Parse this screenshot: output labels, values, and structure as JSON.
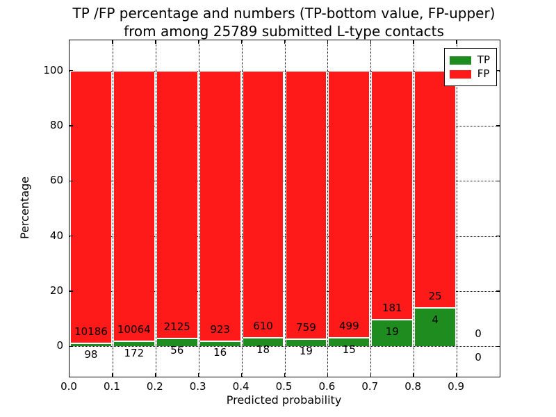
{
  "figure": {
    "title_line1": "TP /FP percentage and numbers (TP-bottom value, FP-upper)",
    "title_line2": "from among 25789 submitted L-type contacts"
  },
  "chart_data": {
    "type": "bar",
    "stacked": true,
    "title": "TP /FP percentage and numbers (TP-bottom value, FP-upper) from among 25789 submitted L-type contacts",
    "xlabel": "Predicted probability",
    "ylabel": "Percentage",
    "total_submitted": 25789,
    "bins": [
      "0.0",
      "0.1",
      "0.2",
      "0.3",
      "0.4",
      "0.5",
      "0.6",
      "0.7",
      "0.8",
      "0.9"
    ],
    "bin_width": 0.1,
    "series": [
      {
        "name": "TP",
        "color": "#1e8c1e",
        "counts": [
          98,
          172,
          56,
          16,
          18,
          19,
          15,
          19,
          4,
          0
        ],
        "percent": [
          0.95,
          1.68,
          2.57,
          1.7,
          2.87,
          2.44,
          2.92,
          9.5,
          13.79,
          0
        ]
      },
      {
        "name": "FP",
        "color": "#ff1a1a",
        "counts": [
          10186,
          10064,
          2125,
          923,
          610,
          759,
          499,
          181,
          25,
          0
        ],
        "percent": [
          99.05,
          98.32,
          97.43,
          98.3,
          97.13,
          97.56,
          97.08,
          90.5,
          86.21,
          0
        ]
      }
    ],
    "xticks": [
      "0.0",
      "0.1",
      "0.2",
      "0.3",
      "0.4",
      "0.5",
      "0.6",
      "0.7",
      "0.8",
      "0.9"
    ],
    "yticks": [
      0,
      20,
      40,
      60,
      80,
      100
    ],
    "xlim": [
      0.0,
      1.0
    ],
    "ylim": [
      -11,
      111
    ],
    "grid": true,
    "grid_style": "dotted",
    "legend": {
      "position": "upper-right",
      "entries": [
        {
          "label": "TP",
          "color": "#1e8c1e"
        },
        {
          "label": "FP",
          "color": "#ff1a1a"
        }
      ]
    }
  }
}
